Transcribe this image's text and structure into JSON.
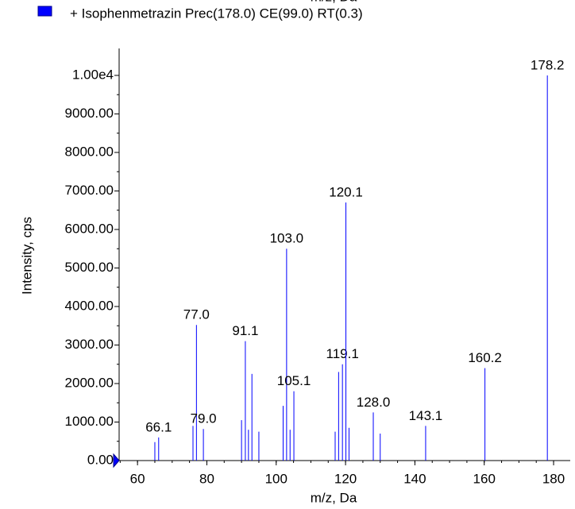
{
  "chart_data": {
    "type": "stem",
    "legend": "+ Isophenmetrazin Prec(178.0) CE(99.0) RT(0.3)",
    "x_label": "m/z, Da",
    "y_label": "Intensity, cps",
    "color": "#0000ff",
    "x": [
      65.0,
      66.1,
      76.0,
      77.0,
      79.0,
      90.0,
      91.1,
      92.0,
      93.0,
      95.0,
      102.0,
      103.0,
      104.0,
      105.1,
      117.0,
      118.0,
      119.1,
      120.1,
      121.0,
      128.0,
      130.0,
      143.1,
      160.2,
      178.2
    ],
    "values": [
      480,
      600,
      900,
      3520,
      820,
      1050,
      3100,
      800,
      2250,
      750,
      1420,
      5500,
      800,
      1800,
      750,
      2300,
      2500,
      6700,
      850,
      1250,
      700,
      900,
      2400,
      10000
    ],
    "peak_labels": [
      null,
      "66.1",
      null,
      "77.0",
      "79.0",
      null,
      "91.1",
      null,
      null,
      null,
      null,
      "103.0",
      null,
      "105.1",
      null,
      null,
      "119.1",
      "120.1",
      null,
      "128.0",
      null,
      "143.1",
      "160.2",
      "178.2"
    ],
    "xlim": [
      54.7,
      184.8
    ],
    "ylim": [
      0,
      10700
    ],
    "xticks": [
      60,
      80,
      100,
      120,
      140,
      160,
      180
    ],
    "yticks": [
      {
        "value": 0,
        "label": "0.00"
      },
      {
        "value": 1000,
        "label": "1000.00"
      },
      {
        "value": 2000,
        "label": "2000.00"
      },
      {
        "value": 3000,
        "label": "3000.00"
      },
      {
        "value": 4000,
        "label": "4000.00"
      },
      {
        "value": 5000,
        "label": "5000.00"
      },
      {
        "value": 6000,
        "label": "6000.00"
      },
      {
        "value": 7000,
        "label": "7000.00"
      },
      {
        "value": 8000,
        "label": "8000.00"
      },
      {
        "value": 9000,
        "label": "9000.00"
      },
      {
        "value": 10000,
        "label": "1.00e4"
      }
    ]
  }
}
